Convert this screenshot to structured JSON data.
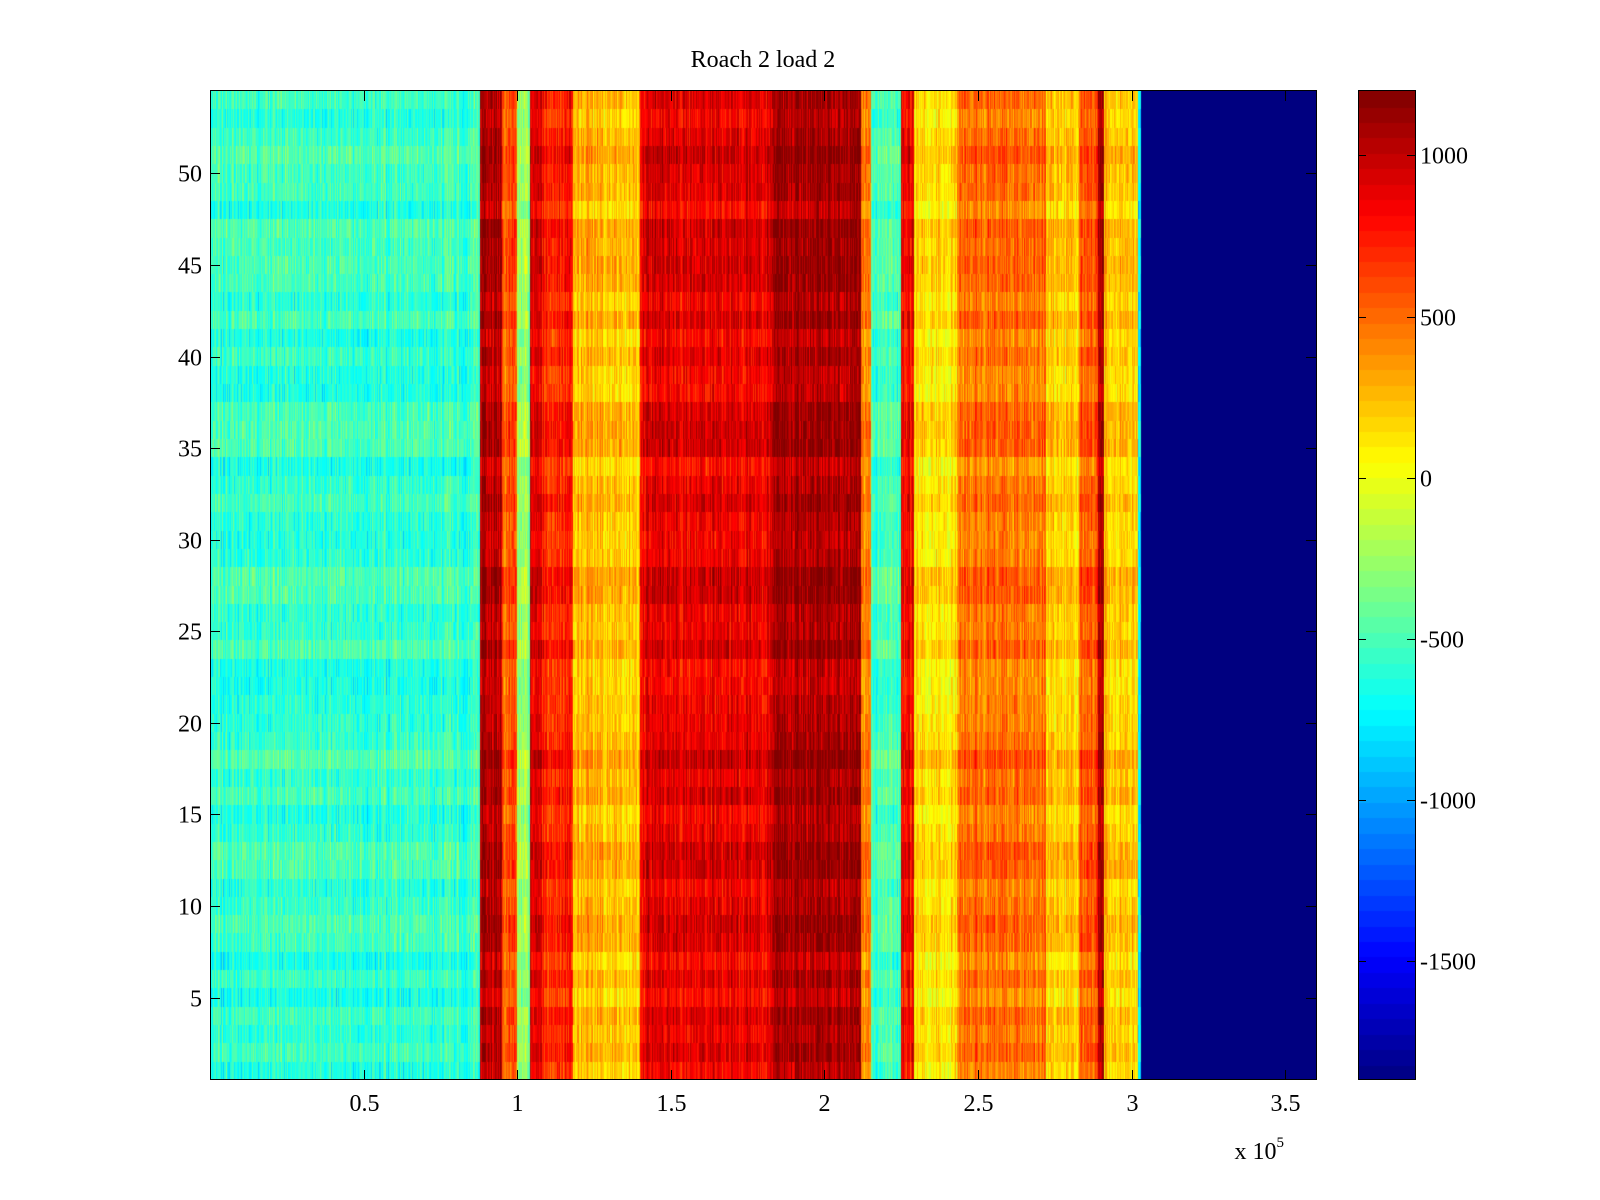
{
  "chart_data": {
    "type": "heatmap",
    "title": "Roach 2 load 2",
    "xlabel": "",
    "ylabel": "",
    "x_scale_label": {
      "base": "x 10",
      "exponent": "5"
    },
    "xlim": [
      0,
      360000
    ],
    "ylim": [
      0.5,
      54.5
    ],
    "rows": 54,
    "x_ticks": [
      {
        "value": 50000,
        "label": "0.5"
      },
      {
        "value": 100000,
        "label": "1"
      },
      {
        "value": 150000,
        "label": "1.5"
      },
      {
        "value": 200000,
        "label": "2"
      },
      {
        "value": 250000,
        "label": "2.5"
      },
      {
        "value": 300000,
        "label": "3"
      },
      {
        "value": 350000,
        "label": "3.5"
      }
    ],
    "y_ticks": [
      {
        "value": 5,
        "label": "5"
      },
      {
        "value": 10,
        "label": "10"
      },
      {
        "value": 15,
        "label": "15"
      },
      {
        "value": 20,
        "label": "20"
      },
      {
        "value": 25,
        "label": "25"
      },
      {
        "value": 30,
        "label": "30"
      },
      {
        "value": 35,
        "label": "35"
      },
      {
        "value": 40,
        "label": "40"
      },
      {
        "value": 45,
        "label": "45"
      },
      {
        "value": 50,
        "label": "50"
      }
    ],
    "colorbar": {
      "colormap": "jet",
      "clim": [
        -1870,
        1200
      ],
      "ticks": [
        {
          "value": 1000,
          "label": "1000"
        },
        {
          "value": 500,
          "label": "500"
        },
        {
          "value": 0,
          "label": "0"
        },
        {
          "value": -500,
          "label": "-500"
        },
        {
          "value": -1000,
          "label": "-1000"
        },
        {
          "value": -1500,
          "label": "-1500"
        }
      ]
    },
    "column_profile": [
      {
        "x0": 0,
        "x1": 88000,
        "value": -560
      },
      {
        "x0": 88000,
        "x1": 95000,
        "value": 1050
      },
      {
        "x0": 95000,
        "x1": 100000,
        "value": 560
      },
      {
        "x0": 100000,
        "x1": 104000,
        "value": -300
      },
      {
        "x0": 104000,
        "x1": 108000,
        "value": 950
      },
      {
        "x0": 108000,
        "x1": 118000,
        "value": 720
      },
      {
        "x0": 118000,
        "x1": 128000,
        "value": 260
      },
      {
        "x0": 128000,
        "x1": 140000,
        "value": 200
      },
      {
        "x0": 140000,
        "x1": 183000,
        "value": 880
      },
      {
        "x0": 183000,
        "x1": 212000,
        "value": 1080
      },
      {
        "x0": 212000,
        "x1": 215000,
        "value": 350
      },
      {
        "x0": 215000,
        "x1": 225000,
        "value": -520
      },
      {
        "x0": 225000,
        "x1": 229000,
        "value": 820
      },
      {
        "x0": 229000,
        "x1": 243000,
        "value": 120
      },
      {
        "x0": 243000,
        "x1": 272000,
        "value": 480
      },
      {
        "x0": 272000,
        "x1": 283000,
        "value": 180
      },
      {
        "x0": 283000,
        "x1": 289000,
        "value": 560
      },
      {
        "x0": 289000,
        "x1": 291000,
        "value": 1080
      },
      {
        "x0": 291000,
        "x1": 302000,
        "value": 220
      },
      {
        "x0": 302000,
        "x1": 303000,
        "value": -700
      },
      {
        "x0": 303000,
        "x1": 360000,
        "value": -1870
      }
    ]
  }
}
